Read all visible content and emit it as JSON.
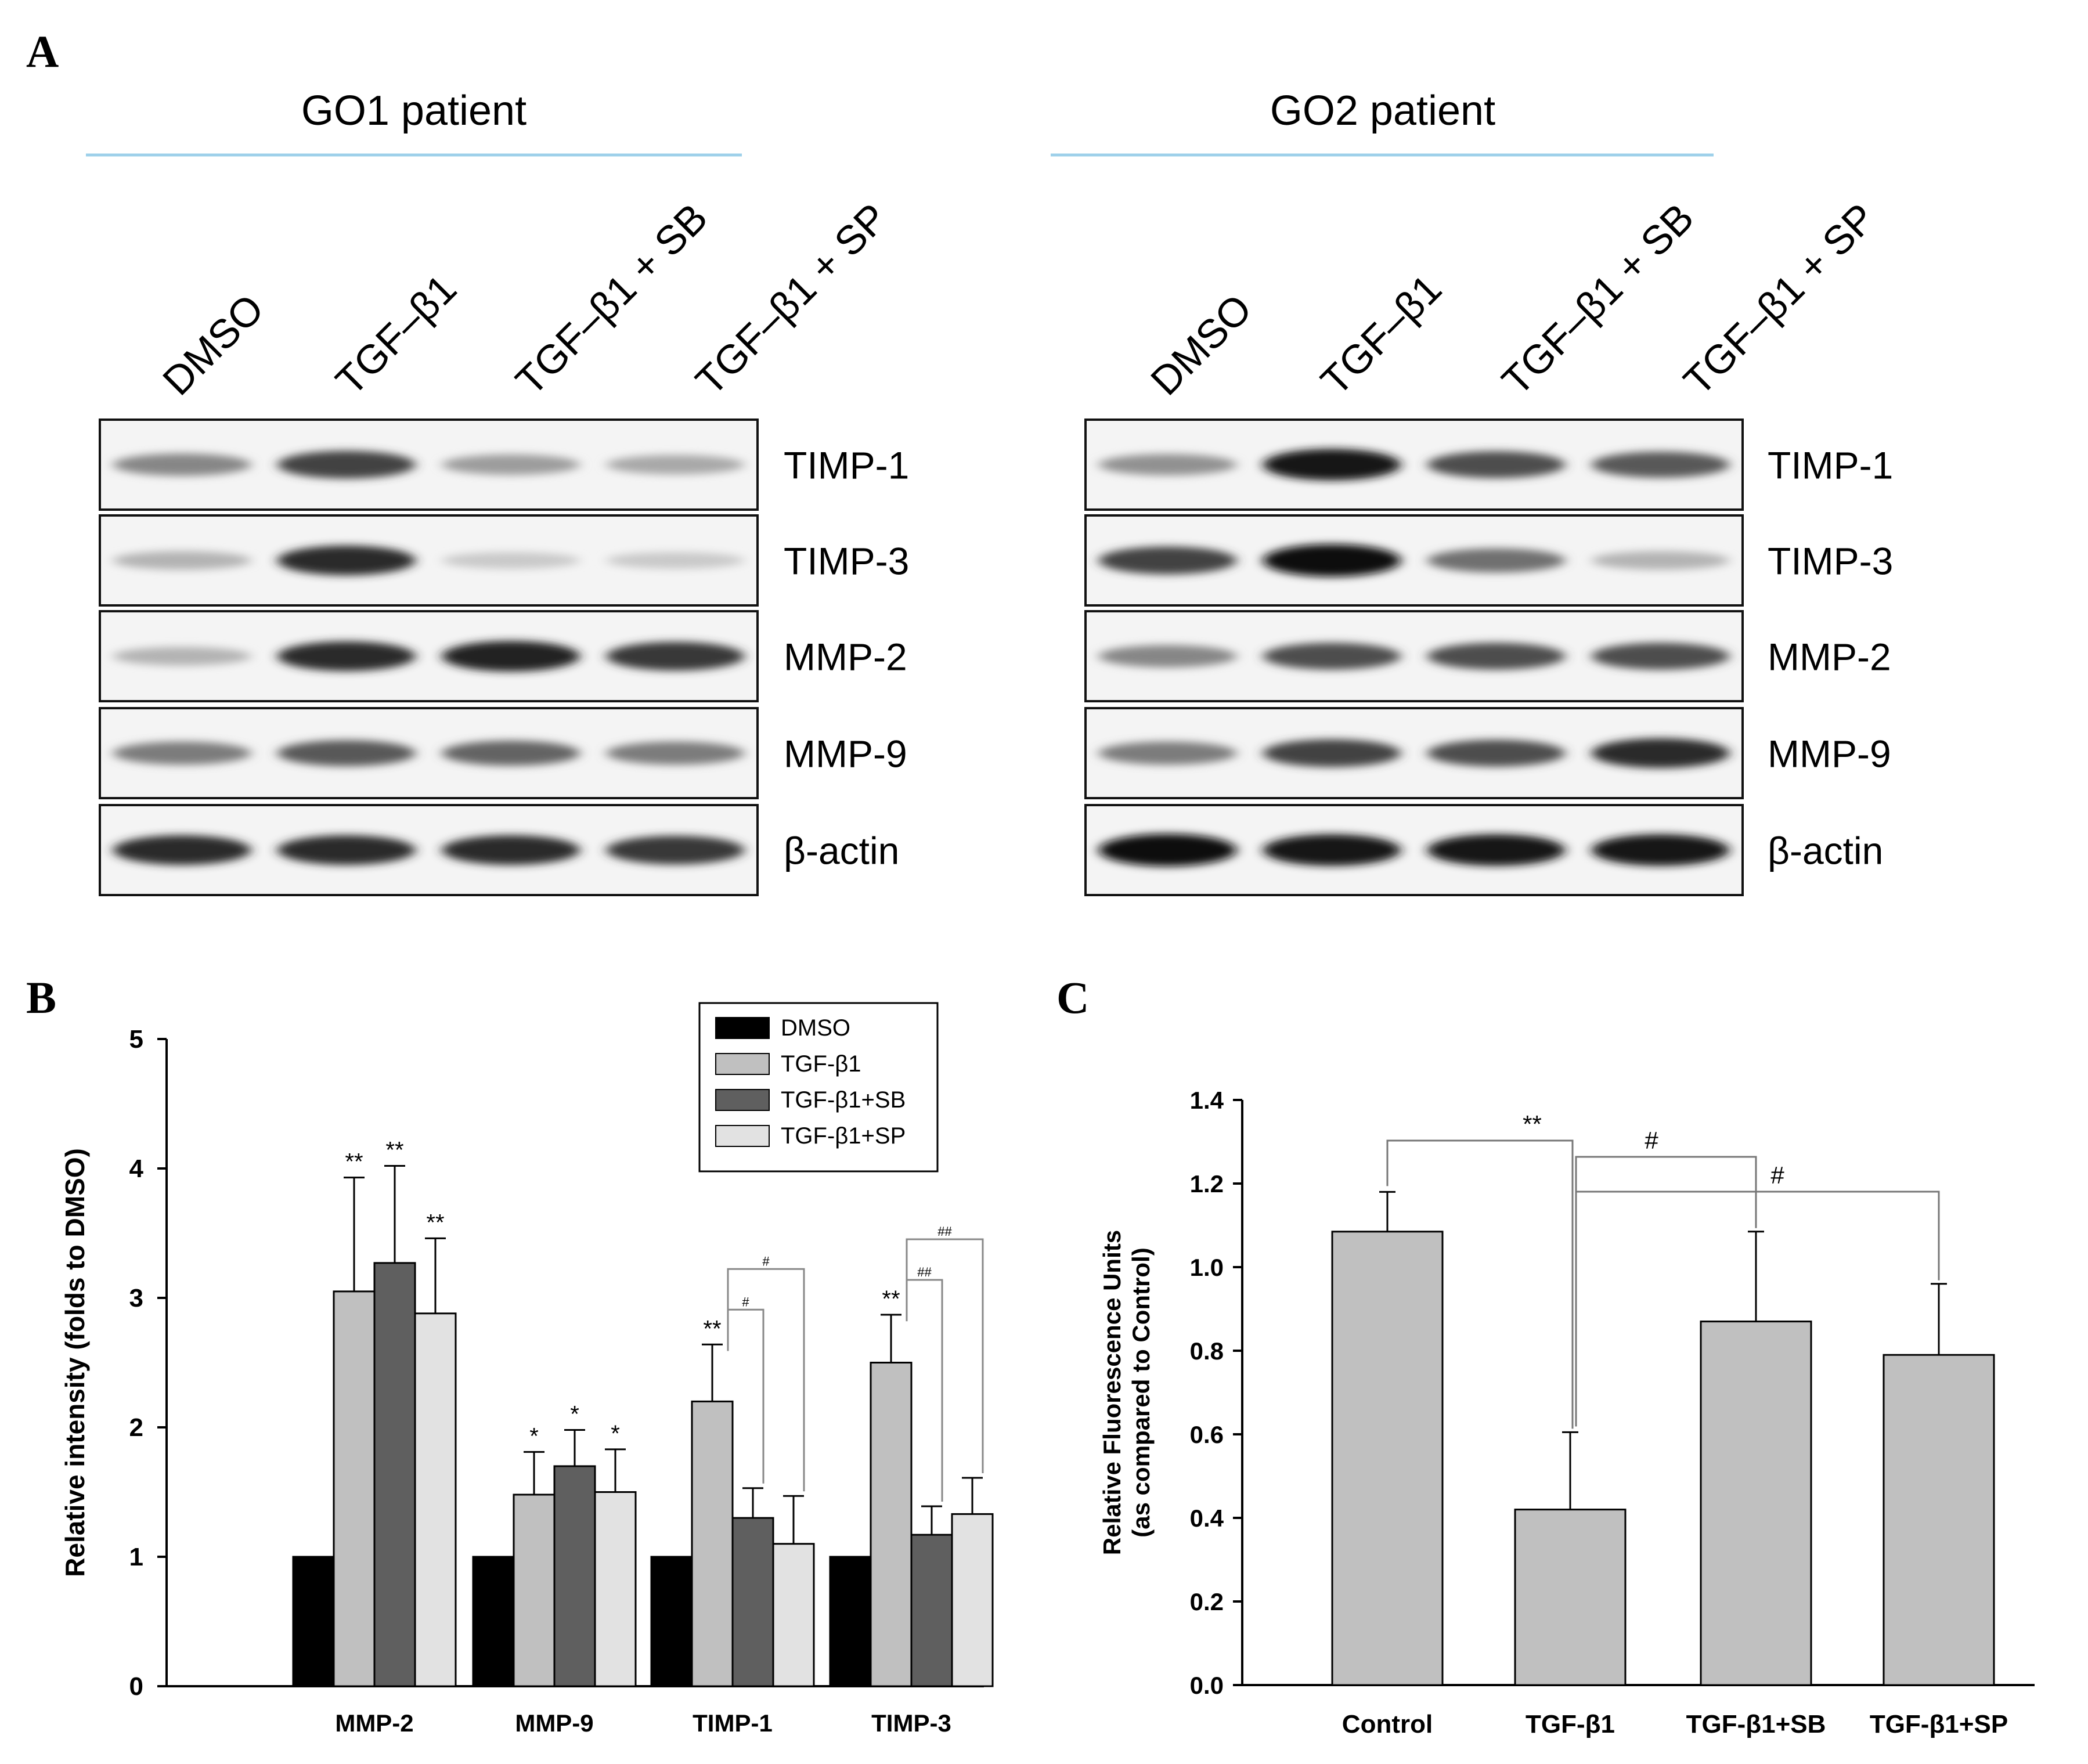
{
  "panels": {
    "a": "A",
    "b": "B",
    "c": "C"
  },
  "blots": [
    {
      "patient": "GO1 patient",
      "lanes": [
        "DMSO",
        "TGF–β1",
        "TGF–β1 + SB",
        "TGF–β1 + SP"
      ],
      "proteins": [
        {
          "label": "TIMP-1",
          "bands": [
            0.45,
            0.75,
            0.35,
            0.3
          ]
        },
        {
          "label": "TIMP-3",
          "bands": [
            0.25,
            0.85,
            0.15,
            0.15
          ]
        },
        {
          "label": "MMP-2",
          "bands": [
            0.25,
            0.85,
            0.9,
            0.8
          ]
        },
        {
          "label": "MMP-9",
          "bands": [
            0.5,
            0.65,
            0.6,
            0.5
          ]
        },
        {
          "label": "β-actin",
          "bands": [
            0.85,
            0.85,
            0.85,
            0.8
          ]
        }
      ]
    },
    {
      "patient": "GO2 patient",
      "lanes": [
        "DMSO",
        "TGF–β1",
        "TGF–β1 + SB",
        "TGF–β1 + SP"
      ],
      "proteins": [
        {
          "label": "TIMP-1",
          "bands": [
            0.4,
            0.95,
            0.7,
            0.65
          ]
        },
        {
          "label": "TIMP-3",
          "bands": [
            0.75,
            1.0,
            0.55,
            0.25
          ]
        },
        {
          "label": "MMP-2",
          "bands": [
            0.45,
            0.7,
            0.7,
            0.7
          ]
        },
        {
          "label": "MMP-9",
          "bands": [
            0.5,
            0.75,
            0.7,
            0.85
          ]
        },
        {
          "label": "β-actin",
          "bands": [
            1.0,
            0.95,
            0.95,
            0.95
          ]
        }
      ]
    }
  ],
  "chart_data": [
    {
      "type": "bar",
      "xlabel": "",
      "ylabel": "Relative intensity (folds to DMSO)",
      "ylim": [
        0,
        5
      ],
      "yticks": [
        "0",
        "1",
        "2",
        "3",
        "4",
        "5"
      ],
      "categories": [
        "MMP-2",
        "MMP-9",
        "TIMP-1",
        "TIMP-3"
      ],
      "legend_position": "top-right",
      "series": [
        {
          "name": "DMSO",
          "color": "#000000",
          "values": [
            1.0,
            1.0,
            1.0,
            1.0
          ],
          "errors": [
            0,
            0,
            0,
            0
          ]
        },
        {
          "name": "TGF-β1",
          "color": "#c0c0c0",
          "values": [
            3.05,
            1.48,
            2.2,
            2.5
          ],
          "errors": [
            0.88,
            0.33,
            0.44,
            0.37
          ]
        },
        {
          "name": "TGF-β1+SB",
          "color": "#5f5f5f",
          "values": [
            3.27,
            1.7,
            1.3,
            1.17
          ],
          "errors": [
            0.75,
            0.28,
            0.23,
            0.22
          ]
        },
        {
          "name": "TGF-β1+SP",
          "color": "#e2e2e2",
          "values": [
            2.88,
            1.5,
            1.1,
            1.33
          ],
          "errors": [
            0.58,
            0.33,
            0.37,
            0.28
          ]
        }
      ],
      "annotations": [
        {
          "cat": 0,
          "series": 1,
          "text": "**"
        },
        {
          "cat": 0,
          "series": 2,
          "text": "**"
        },
        {
          "cat": 0,
          "series": 3,
          "text": "**"
        },
        {
          "cat": 1,
          "series": 1,
          "text": "*"
        },
        {
          "cat": 1,
          "series": 2,
          "text": "*"
        },
        {
          "cat": 1,
          "series": 3,
          "text": "*"
        },
        {
          "cat": 2,
          "series": 1,
          "text": "**"
        },
        {
          "cat": 3,
          "series": 1,
          "text": "**"
        }
      ],
      "brackets": [
        {
          "cat": 2,
          "from": 1,
          "to": 2,
          "text": "#"
        },
        {
          "cat": 2,
          "from": 1,
          "to": 3,
          "text": "#"
        },
        {
          "cat": 3,
          "from": 1,
          "to": 2,
          "text": "##"
        },
        {
          "cat": 3,
          "from": 1,
          "to": 3,
          "text": "##"
        }
      ]
    },
    {
      "type": "bar",
      "xlabel": "",
      "ylabel": "Relative Fluorescence Units\n(as compared to Control)",
      "ylim": [
        0,
        1.4
      ],
      "yticks": [
        "0.0",
        "0.2",
        "0.4",
        "0.6",
        "0.8",
        "1.0",
        "1.2",
        "1.4"
      ],
      "categories": [
        "Control",
        "TGF-β1",
        "TGF-β1+SB",
        "TGF-β1+SP"
      ],
      "series": [
        {
          "color": "#c0c0c0",
          "values": [
            1.085,
            0.42,
            0.87,
            0.79
          ],
          "errors": [
            0.095,
            0.185,
            0.215,
            0.17
          ]
        }
      ],
      "brackets": [
        {
          "from": 0,
          "to": 1,
          "text": "**"
        },
        {
          "from": 1,
          "to": 2,
          "text": "#"
        },
        {
          "from": 1,
          "to": 3,
          "text": "#"
        }
      ]
    }
  ]
}
